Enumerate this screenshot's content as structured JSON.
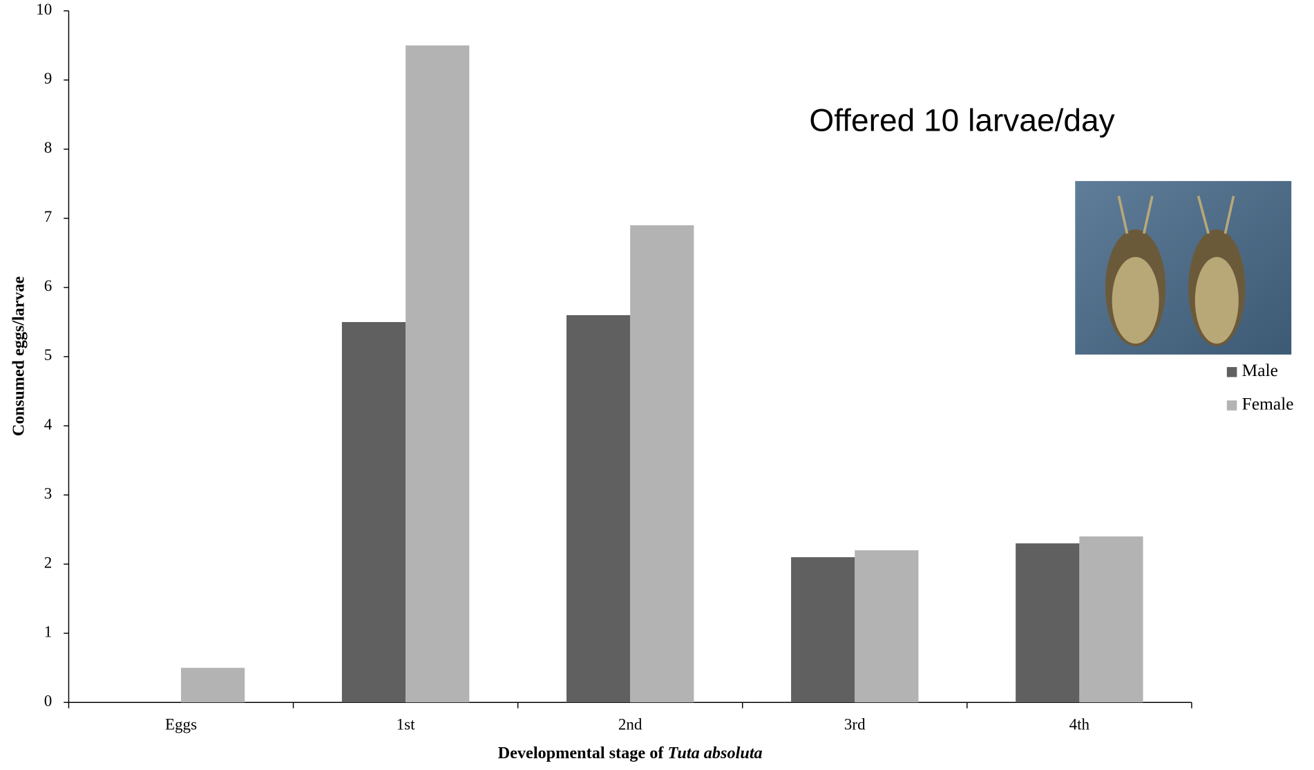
{
  "chart_data": {
    "type": "bar",
    "annotation": "Offered 10 larvae/day",
    "xlabel": "Developmental stage of",
    "xlabel_italic": "Tuta absoluta",
    "ylabel": "Consumed eggs/larvae",
    "categories": [
      "Eggs",
      "1st",
      "2nd",
      "3rd",
      "4th"
    ],
    "series": [
      {
        "name": "Male",
        "color": "#606060",
        "values": [
          0,
          5.5,
          5.6,
          2.1,
          2.3
        ]
      },
      {
        "name": "Female",
        "color": "#b3b3b3",
        "values": [
          0.5,
          9.5,
          6.9,
          2.2,
          2.4
        ]
      }
    ],
    "ylim": [
      0,
      10
    ],
    "yticks": [
      0,
      1,
      2,
      3,
      4,
      5,
      6,
      7,
      8,
      9,
      10
    ],
    "grid": false,
    "legend": "right"
  }
}
